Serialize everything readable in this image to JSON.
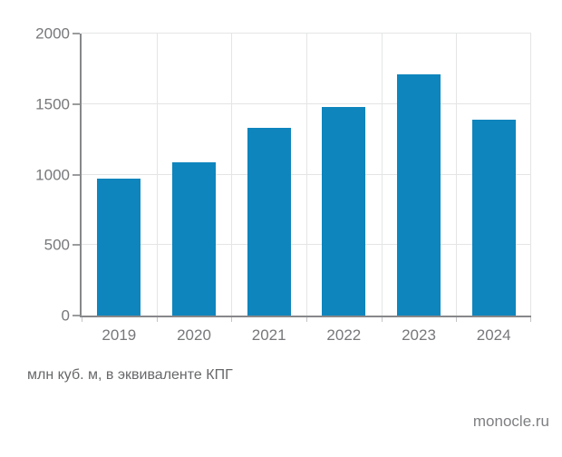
{
  "figure": {
    "caption": "млн куб. м, в эквиваленте КПГ",
    "source": "monocle.ru"
  },
  "colors": {
    "bar": "#0e85bd",
    "axis": "#87888a",
    "grid": "#e4e5e6",
    "tick_label": "#77787b"
  },
  "chart_data": {
    "type": "bar",
    "categories": [
      "2019",
      "2020",
      "2021",
      "2022",
      "2023",
      "2024"
    ],
    "values": [
      970,
      1090,
      1330,
      1480,
      1710,
      1390
    ],
    "title": "",
    "xlabel": "",
    "ylabel": "млн куб. м, в эквиваленте КПГ",
    "ylim": [
      0,
      2000
    ],
    "yticks": [
      0,
      500,
      1000,
      1500,
      2000
    ],
    "grid": true,
    "legend": false,
    "bar_width_fraction": 0.58,
    "source_watermark": "monocle.ru"
  }
}
